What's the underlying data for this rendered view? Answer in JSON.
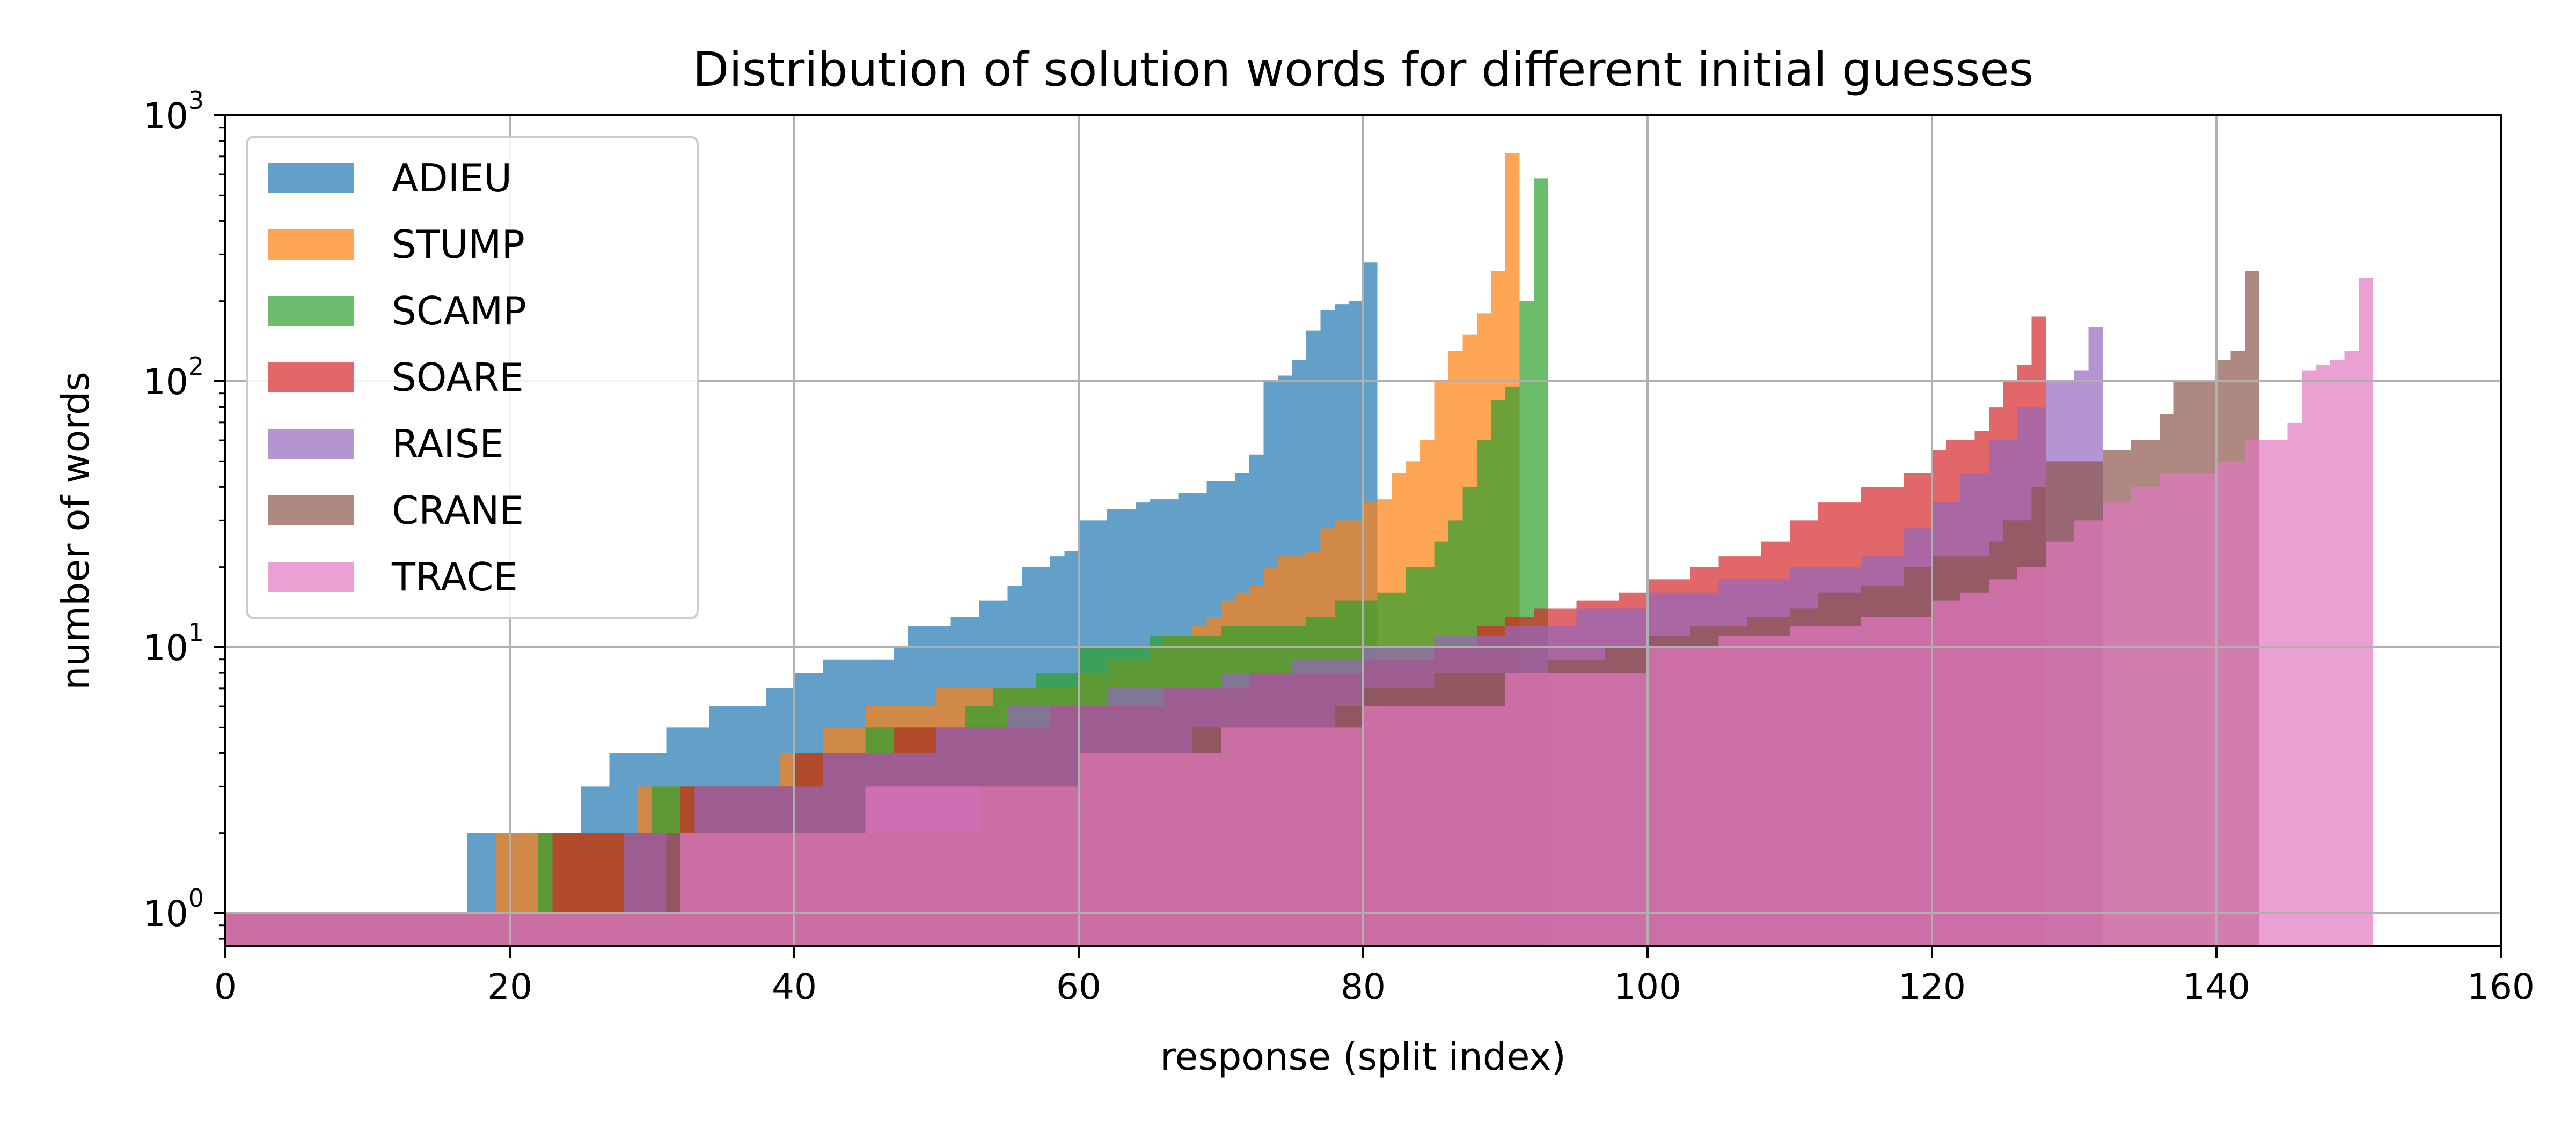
{
  "chart_data": {
    "type": "bar",
    "title": "Distribution of solution words for different initial guesses",
    "xlabel": "response (split index)",
    "ylabel": "number of words",
    "xlim": [
      0,
      160
    ],
    "ylim": [
      0.75,
      1000
    ],
    "yscale": "log",
    "xticks": [
      "0",
      "20",
      "40",
      "60",
      "80",
      "100",
      "120",
      "140",
      "160"
    ],
    "yticks": [
      {
        "base": "10",
        "exp": "0",
        "value": 1
      },
      {
        "base": "10",
        "exp": "1",
        "value": 10
      },
      {
        "base": "10",
        "exp": "2",
        "value": 100
      },
      {
        "base": "10",
        "exp": "3",
        "value": 1000
      }
    ],
    "grid": true,
    "legend_position": "top-left",
    "series": [
      {
        "name": "ADIEU",
        "color": "#1f77b4",
        "steps": [
          [
            0,
            1
          ],
          [
            17,
            2
          ],
          [
            21,
            2
          ],
          [
            25,
            3
          ],
          [
            27,
            4
          ],
          [
            31,
            5
          ],
          [
            34,
            6
          ],
          [
            38,
            7
          ],
          [
            40,
            8
          ],
          [
            42,
            9
          ],
          [
            47,
            10
          ],
          [
            48,
            12
          ],
          [
            51,
            13
          ],
          [
            53,
            15
          ],
          [
            55,
            17
          ],
          [
            56,
            20
          ],
          [
            58,
            22
          ],
          [
            59,
            23
          ],
          [
            60,
            30
          ],
          [
            62,
            33
          ],
          [
            64,
            35
          ],
          [
            65,
            36
          ],
          [
            67,
            38
          ],
          [
            69,
            42
          ],
          [
            71,
            45
          ],
          [
            72,
            53
          ],
          [
            73,
            100
          ],
          [
            74,
            105
          ],
          [
            75,
            120
          ],
          [
            76,
            155
          ],
          [
            77,
            185
          ],
          [
            78,
            195
          ],
          [
            79,
            200
          ],
          [
            80,
            280
          ],
          [
            81,
            0
          ]
        ]
      },
      {
        "name": "STUMP",
        "color": "#ff7f0e",
        "steps": [
          [
            0,
            1
          ],
          [
            19,
            2
          ],
          [
            23,
            2
          ],
          [
            29,
            3
          ],
          [
            39,
            4
          ],
          [
            42,
            5
          ],
          [
            45,
            6
          ],
          [
            48,
            6
          ],
          [
            50,
            7
          ],
          [
            55,
            7
          ],
          [
            60,
            8
          ],
          [
            62,
            9
          ],
          [
            65,
            10
          ],
          [
            66,
            11
          ],
          [
            68,
            12
          ],
          [
            69,
            13
          ],
          [
            70,
            15
          ],
          [
            71,
            16
          ],
          [
            72,
            17
          ],
          [
            73,
            20
          ],
          [
            74,
            22
          ],
          [
            76,
            23
          ],
          [
            77,
            28
          ],
          [
            78,
            30
          ],
          [
            80,
            35
          ],
          [
            81,
            36
          ],
          [
            82,
            45
          ],
          [
            83,
            50
          ],
          [
            84,
            60
          ],
          [
            85,
            100
          ],
          [
            86,
            130
          ],
          [
            87,
            150
          ],
          [
            88,
            180
          ],
          [
            89,
            260
          ],
          [
            90,
            720
          ],
          [
            91,
            0
          ]
        ]
      },
      {
        "name": "SCAMP",
        "color": "#2ca02c",
        "steps": [
          [
            0,
            1
          ],
          [
            22,
            2
          ],
          [
            30,
            3
          ],
          [
            40,
            4
          ],
          [
            45,
            5
          ],
          [
            52,
            6
          ],
          [
            54,
            7
          ],
          [
            57,
            8
          ],
          [
            60,
            10
          ],
          [
            65,
            11
          ],
          [
            70,
            12
          ],
          [
            76,
            13
          ],
          [
            78,
            15
          ],
          [
            81,
            16
          ],
          [
            83,
            20
          ],
          [
            85,
            25
          ],
          [
            86,
            30
          ],
          [
            87,
            40
          ],
          [
            88,
            60
          ],
          [
            89,
            85
          ],
          [
            90,
            95
          ],
          [
            91,
            200
          ],
          [
            92,
            580
          ],
          [
            93,
            0
          ]
        ]
      },
      {
        "name": "SOARE",
        "color": "#d62728",
        "steps": [
          [
            0,
            1
          ],
          [
            23,
            2
          ],
          [
            29,
            2
          ],
          [
            32,
            3
          ],
          [
            36,
            3
          ],
          [
            40,
            4
          ],
          [
            43,
            4
          ],
          [
            47,
            5
          ],
          [
            50,
            5
          ],
          [
            58,
            6
          ],
          [
            65,
            6
          ],
          [
            66,
            7
          ],
          [
            70,
            7
          ],
          [
            72,
            8
          ],
          [
            80,
            9
          ],
          [
            85,
            10
          ],
          [
            88,
            12
          ],
          [
            90,
            13
          ],
          [
            92,
            14
          ],
          [
            95,
            15
          ],
          [
            98,
            16
          ],
          [
            100,
            18
          ],
          [
            103,
            20
          ],
          [
            105,
            22
          ],
          [
            108,
            25
          ],
          [
            110,
            30
          ],
          [
            112,
            35
          ],
          [
            115,
            40
          ],
          [
            118,
            45
          ],
          [
            120,
            55
          ],
          [
            121,
            60
          ],
          [
            123,
            65
          ],
          [
            124,
            80
          ],
          [
            125,
            100
          ],
          [
            126,
            115
          ],
          [
            127,
            175
          ],
          [
            128,
            0
          ]
        ]
      },
      {
        "name": "RAISE",
        "color": "#9467bd",
        "steps": [
          [
            0,
            1
          ],
          [
            28,
            2
          ],
          [
            31,
            2
          ],
          [
            33,
            3
          ],
          [
            40,
            3
          ],
          [
            42,
            4
          ],
          [
            48,
            4
          ],
          [
            50,
            5
          ],
          [
            55,
            6
          ],
          [
            62,
            7
          ],
          [
            70,
            8
          ],
          [
            75,
            9
          ],
          [
            80,
            10
          ],
          [
            85,
            11
          ],
          [
            90,
            12
          ],
          [
            95,
            14
          ],
          [
            100,
            16
          ],
          [
            105,
            18
          ],
          [
            110,
            20
          ],
          [
            115,
            22
          ],
          [
            118,
            28
          ],
          [
            120,
            35
          ],
          [
            122,
            45
          ],
          [
            124,
            60
          ],
          [
            126,
            80
          ],
          [
            128,
            100
          ],
          [
            130,
            110
          ],
          [
            131,
            160
          ],
          [
            132,
            0
          ]
        ]
      },
      {
        "name": "CRANE",
        "color": "#8c564b",
        "steps": [
          [
            0,
            1
          ],
          [
            31,
            2
          ],
          [
            48,
            2
          ],
          [
            53,
            3
          ],
          [
            60,
            4
          ],
          [
            68,
            5
          ],
          [
            76,
            5
          ],
          [
            78,
            6
          ],
          [
            80,
            7
          ],
          [
            85,
            8
          ],
          [
            90,
            8
          ],
          [
            93,
            9
          ],
          [
            97,
            10
          ],
          [
            100,
            11
          ],
          [
            103,
            12
          ],
          [
            107,
            13
          ],
          [
            110,
            14
          ],
          [
            112,
            16
          ],
          [
            115,
            17
          ],
          [
            118,
            20
          ],
          [
            120,
            22
          ],
          [
            124,
            25
          ],
          [
            125,
            30
          ],
          [
            127,
            40
          ],
          [
            128,
            50
          ],
          [
            132,
            55
          ],
          [
            134,
            60
          ],
          [
            136,
            75
          ],
          [
            137,
            100
          ],
          [
            140,
            120
          ],
          [
            141,
            130
          ],
          [
            142,
            260
          ],
          [
            143,
            0
          ]
        ]
      },
      {
        "name": "TRACE",
        "color": "#e377c2",
        "steps": [
          [
            0,
            1
          ],
          [
            32,
            2
          ],
          [
            45,
            3
          ],
          [
            60,
            4
          ],
          [
            70,
            5
          ],
          [
            80,
            6
          ],
          [
            90,
            8
          ],
          [
            100,
            10
          ],
          [
            105,
            11
          ],
          [
            110,
            12
          ],
          [
            115,
            13
          ],
          [
            120,
            15
          ],
          [
            122,
            16
          ],
          [
            124,
            18
          ],
          [
            126,
            20
          ],
          [
            128,
            25
          ],
          [
            130,
            30
          ],
          [
            132,
            35
          ],
          [
            134,
            40
          ],
          [
            136,
            45
          ],
          [
            140,
            50
          ],
          [
            142,
            60
          ],
          [
            145,
            70
          ],
          [
            146,
            110
          ],
          [
            147,
            115
          ],
          [
            148,
            120
          ],
          [
            149,
            130
          ],
          [
            150,
            245
          ],
          [
            151,
            0
          ]
        ]
      }
    ]
  }
}
